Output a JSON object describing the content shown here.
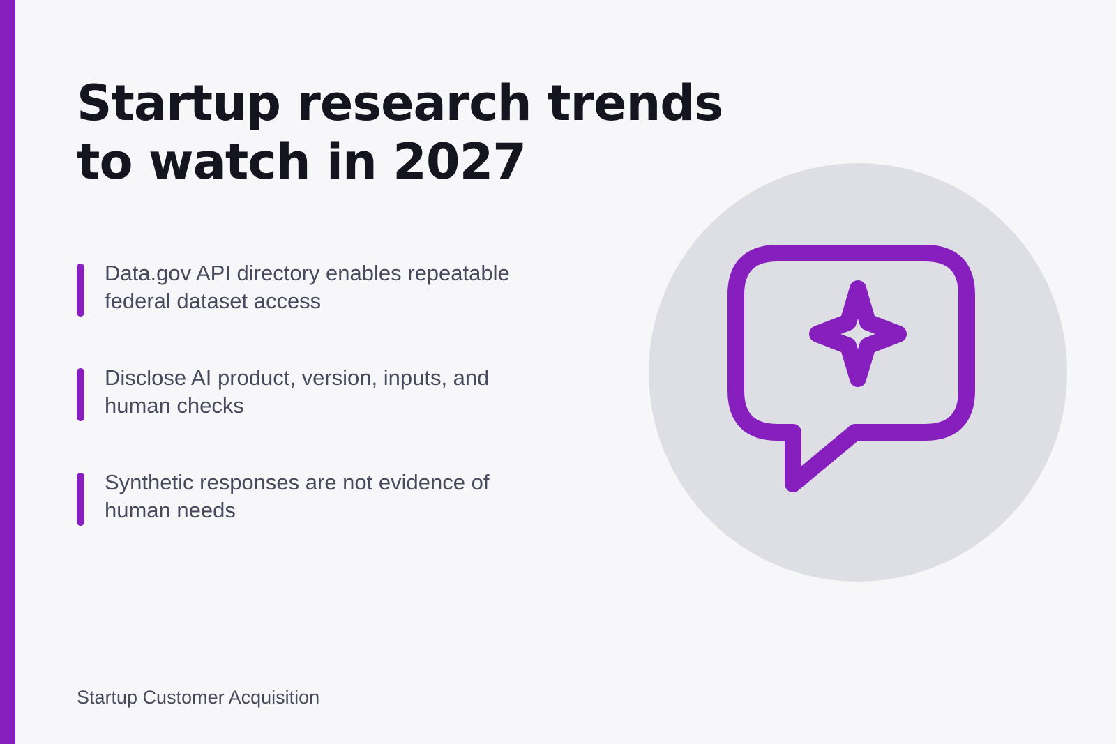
{
  "slide": {
    "title": "Startup research trends to watch in 2027",
    "bullets": [
      {
        "text": "Data.gov API directory enables repeatable federal dataset access"
      },
      {
        "text": "Disclose AI product, version, inputs, and human checks"
      },
      {
        "text": "Synthetic responses are not evidence of human needs"
      }
    ],
    "illustration": {
      "icon": "chat-bubble-sparkle-icon"
    },
    "footer": "Startup Customer Acquisition"
  },
  "colors": {
    "accent": "#861fbd",
    "background": "#f7f7f9",
    "title": "#15151f",
    "body_text": "#474a5c",
    "circle": "#dedee5"
  }
}
